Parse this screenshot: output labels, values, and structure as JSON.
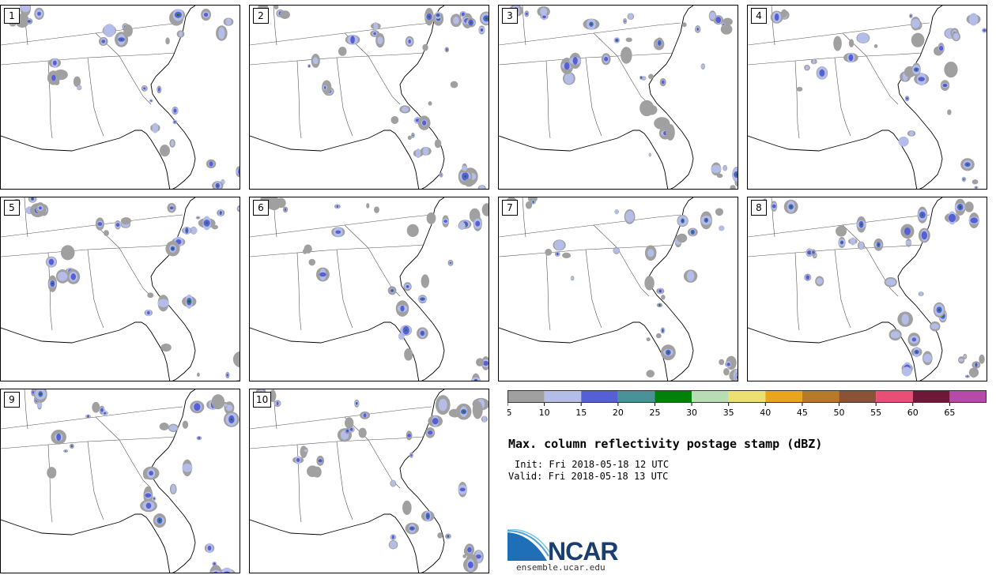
{
  "panels": [
    {
      "label": "1"
    },
    {
      "label": "2"
    },
    {
      "label": "3"
    },
    {
      "label": "4"
    },
    {
      "label": "5"
    },
    {
      "label": "6"
    },
    {
      "label": "7"
    },
    {
      "label": "8"
    },
    {
      "label": "9"
    },
    {
      "label": "10"
    }
  ],
  "colorbar": {
    "ticks": [
      "5",
      "10",
      "15",
      "20",
      "25",
      "30",
      "35",
      "40",
      "45",
      "50",
      "55",
      "60",
      "65"
    ],
    "colors": [
      "#a0a0a0",
      "#b4bde8",
      "#5560d6",
      "#4a9198",
      "#00820a",
      "#b8ddb4",
      "#ece070",
      "#e9a51c",
      "#b57a2a",
      "#8a5236",
      "#e94e77",
      "#6e1838",
      "#b54aa8"
    ]
  },
  "title": "Max. column reflectivity postage stamp (dBZ)",
  "init": "Init: Fri 2018-05-18 12 UTC",
  "valid": "Valid: Fri 2018-05-18 13 UTC",
  "logo": {
    "name": "NCAR",
    "url": "ensemble.ucar.edu"
  }
}
